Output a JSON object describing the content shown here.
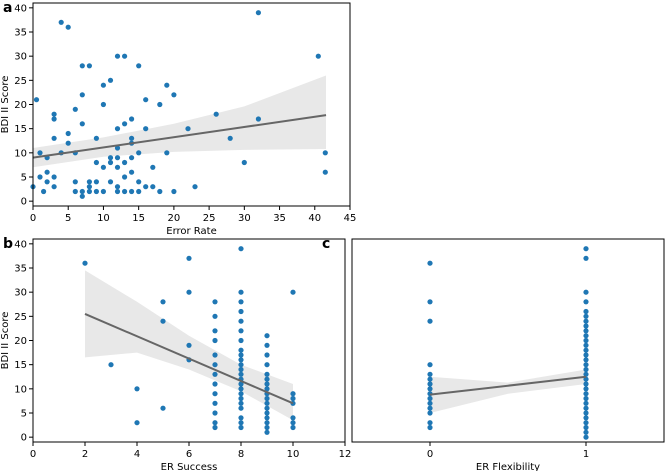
{
  "chart_data": [
    {
      "panel": "a",
      "type": "scatter",
      "xlabel": "Error Rate",
      "ylabel": "BDI II Score",
      "xlim": [
        0,
        45
      ],
      "ylim": [
        -1,
        41
      ],
      "xticks": [
        0,
        5,
        10,
        15,
        20,
        25,
        30,
        35,
        40,
        45
      ],
      "yticks": [
        0,
        5,
        10,
        15,
        20,
        25,
        30,
        35,
        40
      ],
      "point_color": "#1f77b4",
      "line_color": "#666666",
      "band_color": "#e8e8e8",
      "fit": {
        "x0": 0,
        "y0": 9,
        "x1": 41.6,
        "y1": 17.8
      },
      "band_upper": [
        [
          0,
          11
        ],
        [
          10,
          13.2
        ],
        [
          20,
          16
        ],
        [
          30,
          19.6
        ],
        [
          41.6,
          26
        ]
      ],
      "band_lower": [
        [
          41.6,
          10.8
        ],
        [
          30,
          10.6
        ],
        [
          20,
          10.2
        ],
        [
          10,
          9.2
        ],
        [
          0,
          7
        ]
      ],
      "points": [
        [
          0,
          3
        ],
        [
          0.5,
          21
        ],
        [
          1,
          5
        ],
        [
          1,
          10
        ],
        [
          1.5,
          2
        ],
        [
          2,
          6
        ],
        [
          2,
          9
        ],
        [
          2,
          4
        ],
        [
          3,
          5
        ],
        [
          3,
          3
        ],
        [
          3,
          13
        ],
        [
          3,
          17
        ],
        [
          3,
          18
        ],
        [
          4,
          37
        ],
        [
          4,
          10
        ],
        [
          5,
          14
        ],
        [
          5,
          36
        ],
        [
          5,
          12
        ],
        [
          6,
          2
        ],
        [
          6,
          4
        ],
        [
          6,
          10
        ],
        [
          6,
          19
        ],
        [
          7,
          1
        ],
        [
          7,
          2
        ],
        [
          7,
          28
        ],
        [
          7,
          16
        ],
        [
          7,
          22
        ],
        [
          8,
          28
        ],
        [
          8,
          2
        ],
        [
          8,
          4
        ],
        [
          8,
          3
        ],
        [
          9,
          4
        ],
        [
          9,
          2
        ],
        [
          9,
          8
        ],
        [
          9,
          13
        ],
        [
          10,
          24
        ],
        [
          10,
          2
        ],
        [
          10,
          7
        ],
        [
          10,
          20
        ],
        [
          11,
          4
        ],
        [
          11,
          8
        ],
        [
          11,
          25
        ],
        [
          11,
          9
        ],
        [
          12,
          30
        ],
        [
          12,
          2
        ],
        [
          12,
          3
        ],
        [
          12,
          7
        ],
        [
          12,
          9
        ],
        [
          12,
          11
        ],
        [
          12,
          15
        ],
        [
          13,
          30
        ],
        [
          13,
          2
        ],
        [
          13,
          5
        ],
        [
          13,
          8
        ],
        [
          13,
          16
        ],
        [
          14,
          12
        ],
        [
          14,
          2
        ],
        [
          14,
          17
        ],
        [
          14,
          13
        ],
        [
          14,
          6
        ],
        [
          14,
          9
        ],
        [
          15,
          2
        ],
        [
          15,
          10
        ],
        [
          15,
          28
        ],
        [
          15,
          4
        ],
        [
          16,
          15
        ],
        [
          16,
          3
        ],
        [
          16,
          21
        ],
        [
          17,
          3
        ],
        [
          17,
          7
        ],
        [
          18,
          2
        ],
        [
          18,
          20
        ],
        [
          19,
          10
        ],
        [
          19,
          24
        ],
        [
          20,
          2
        ],
        [
          20,
          22
        ],
        [
          22,
          15
        ],
        [
          23,
          3
        ],
        [
          26,
          18
        ],
        [
          28,
          13
        ],
        [
          30,
          8
        ],
        [
          32,
          17
        ],
        [
          32,
          39
        ],
        [
          40.5,
          30
        ],
        [
          41.5,
          10
        ],
        [
          41.5,
          6
        ]
      ]
    },
    {
      "panel": "b",
      "type": "scatter",
      "xlabel": "ER Success",
      "ylabel": "BDI II Score",
      "xlim": [
        0,
        12
      ],
      "ylim": [
        -1,
        41
      ],
      "xticks": [
        0,
        2,
        4,
        6,
        8,
        10,
        12
      ],
      "yticks": [
        0,
        5,
        10,
        15,
        20,
        25,
        30,
        35,
        40
      ],
      "point_color": "#1f77b4",
      "line_color": "#666666",
      "band_color": "#e8e8e8",
      "fit": {
        "x0": 2,
        "y0": 25.5,
        "x1": 10,
        "y1": 7
      },
      "band_upper": [
        [
          2,
          34.5
        ],
        [
          4,
          28
        ],
        [
          6,
          21
        ],
        [
          8,
          15
        ],
        [
          10,
          11
        ]
      ],
      "band_lower": [
        [
          10,
          3.5
        ],
        [
          8,
          9.5
        ],
        [
          6,
          14
        ],
        [
          4,
          17.5
        ],
        [
          2,
          16.5
        ]
      ],
      "points": [
        [
          2,
          36
        ],
        [
          3,
          15
        ],
        [
          4,
          10
        ],
        [
          4,
          3
        ],
        [
          5,
          28
        ],
        [
          5,
          24
        ],
        [
          5,
          6
        ],
        [
          6,
          37
        ],
        [
          6,
          30
        ],
        [
          6,
          19
        ],
        [
          6,
          16
        ],
        [
          7,
          28
        ],
        [
          7,
          25
        ],
        [
          7,
          22
        ],
        [
          7,
          20
        ],
        [
          7,
          17
        ],
        [
          7,
          15
        ],
        [
          7,
          13
        ],
        [
          7,
          11
        ],
        [
          7,
          9
        ],
        [
          7,
          7
        ],
        [
          7,
          5
        ],
        [
          7,
          3
        ],
        [
          7,
          2
        ],
        [
          8,
          39
        ],
        [
          8,
          30
        ],
        [
          8,
          28
        ],
        [
          8,
          26
        ],
        [
          8,
          24
        ],
        [
          8,
          22
        ],
        [
          8,
          20
        ],
        [
          8,
          18
        ],
        [
          8,
          17
        ],
        [
          8,
          16
        ],
        [
          8,
          15
        ],
        [
          8,
          14
        ],
        [
          8,
          13
        ],
        [
          8,
          12
        ],
        [
          8,
          11
        ],
        [
          8,
          10
        ],
        [
          8,
          9
        ],
        [
          8,
          8
        ],
        [
          8,
          7
        ],
        [
          8,
          6
        ],
        [
          8,
          4
        ],
        [
          8,
          3
        ],
        [
          8,
          2
        ],
        [
          9,
          21
        ],
        [
          9,
          19
        ],
        [
          9,
          17
        ],
        [
          9,
          15
        ],
        [
          9,
          13
        ],
        [
          9,
          12
        ],
        [
          9,
          11
        ],
        [
          9,
          10
        ],
        [
          9,
          9
        ],
        [
          9,
          8
        ],
        [
          9,
          7
        ],
        [
          9,
          6
        ],
        [
          9,
          5
        ],
        [
          9,
          4
        ],
        [
          9,
          3
        ],
        [
          9,
          2
        ],
        [
          9,
          1
        ],
        [
          10,
          30
        ],
        [
          10,
          9
        ],
        [
          10,
          8
        ],
        [
          10,
          7
        ],
        [
          10,
          4
        ],
        [
          10,
          3
        ],
        [
          10,
          2
        ]
      ]
    },
    {
      "panel": "c",
      "type": "scatter",
      "xlabel": "ER Flexibility",
      "ylabel": "",
      "xlim": [
        -0.5,
        1.5
      ],
      "ylim": [
        -1,
        41
      ],
      "xticks": [
        0,
        1
      ],
      "yticks": [],
      "point_color": "#1f77b4",
      "line_color": "#666666",
      "band_color": "#e8e8e8",
      "fit": {
        "x0": 0,
        "y0": 8.8,
        "x1": 1,
        "y1": 12.5
      },
      "band_upper": [
        [
          0,
          12.5
        ],
        [
          0.5,
          11.3
        ],
        [
          1,
          14
        ]
      ],
      "band_lower": [
        [
          1,
          11
        ],
        [
          0.5,
          9
        ],
        [
          0,
          5
        ]
      ],
      "points": [
        [
          0,
          36
        ],
        [
          0,
          28
        ],
        [
          0,
          24
        ],
        [
          0,
          15
        ],
        [
          0,
          13
        ],
        [
          0,
          12
        ],
        [
          0,
          11
        ],
        [
          0,
          10
        ],
        [
          0,
          9
        ],
        [
          0,
          8
        ],
        [
          0,
          7
        ],
        [
          0,
          6
        ],
        [
          0,
          5
        ],
        [
          0,
          3
        ],
        [
          0,
          2
        ],
        [
          1,
          39
        ],
        [
          1,
          37
        ],
        [
          1,
          30
        ],
        [
          1,
          28
        ],
        [
          1,
          26
        ],
        [
          1,
          25
        ],
        [
          1,
          24
        ],
        [
          1,
          23
        ],
        [
          1,
          22
        ],
        [
          1,
          21
        ],
        [
          1,
          20
        ],
        [
          1,
          19
        ],
        [
          1,
          18
        ],
        [
          1,
          17
        ],
        [
          1,
          16
        ],
        [
          1,
          15
        ],
        [
          1,
          14
        ],
        [
          1,
          13
        ],
        [
          1,
          12
        ],
        [
          1,
          11
        ],
        [
          1,
          10
        ],
        [
          1,
          9
        ],
        [
          1,
          8
        ],
        [
          1,
          7
        ],
        [
          1,
          6
        ],
        [
          1,
          5
        ],
        [
          1,
          4
        ],
        [
          1,
          3
        ],
        [
          1,
          2
        ],
        [
          1,
          1
        ],
        [
          1,
          0
        ]
      ]
    }
  ]
}
